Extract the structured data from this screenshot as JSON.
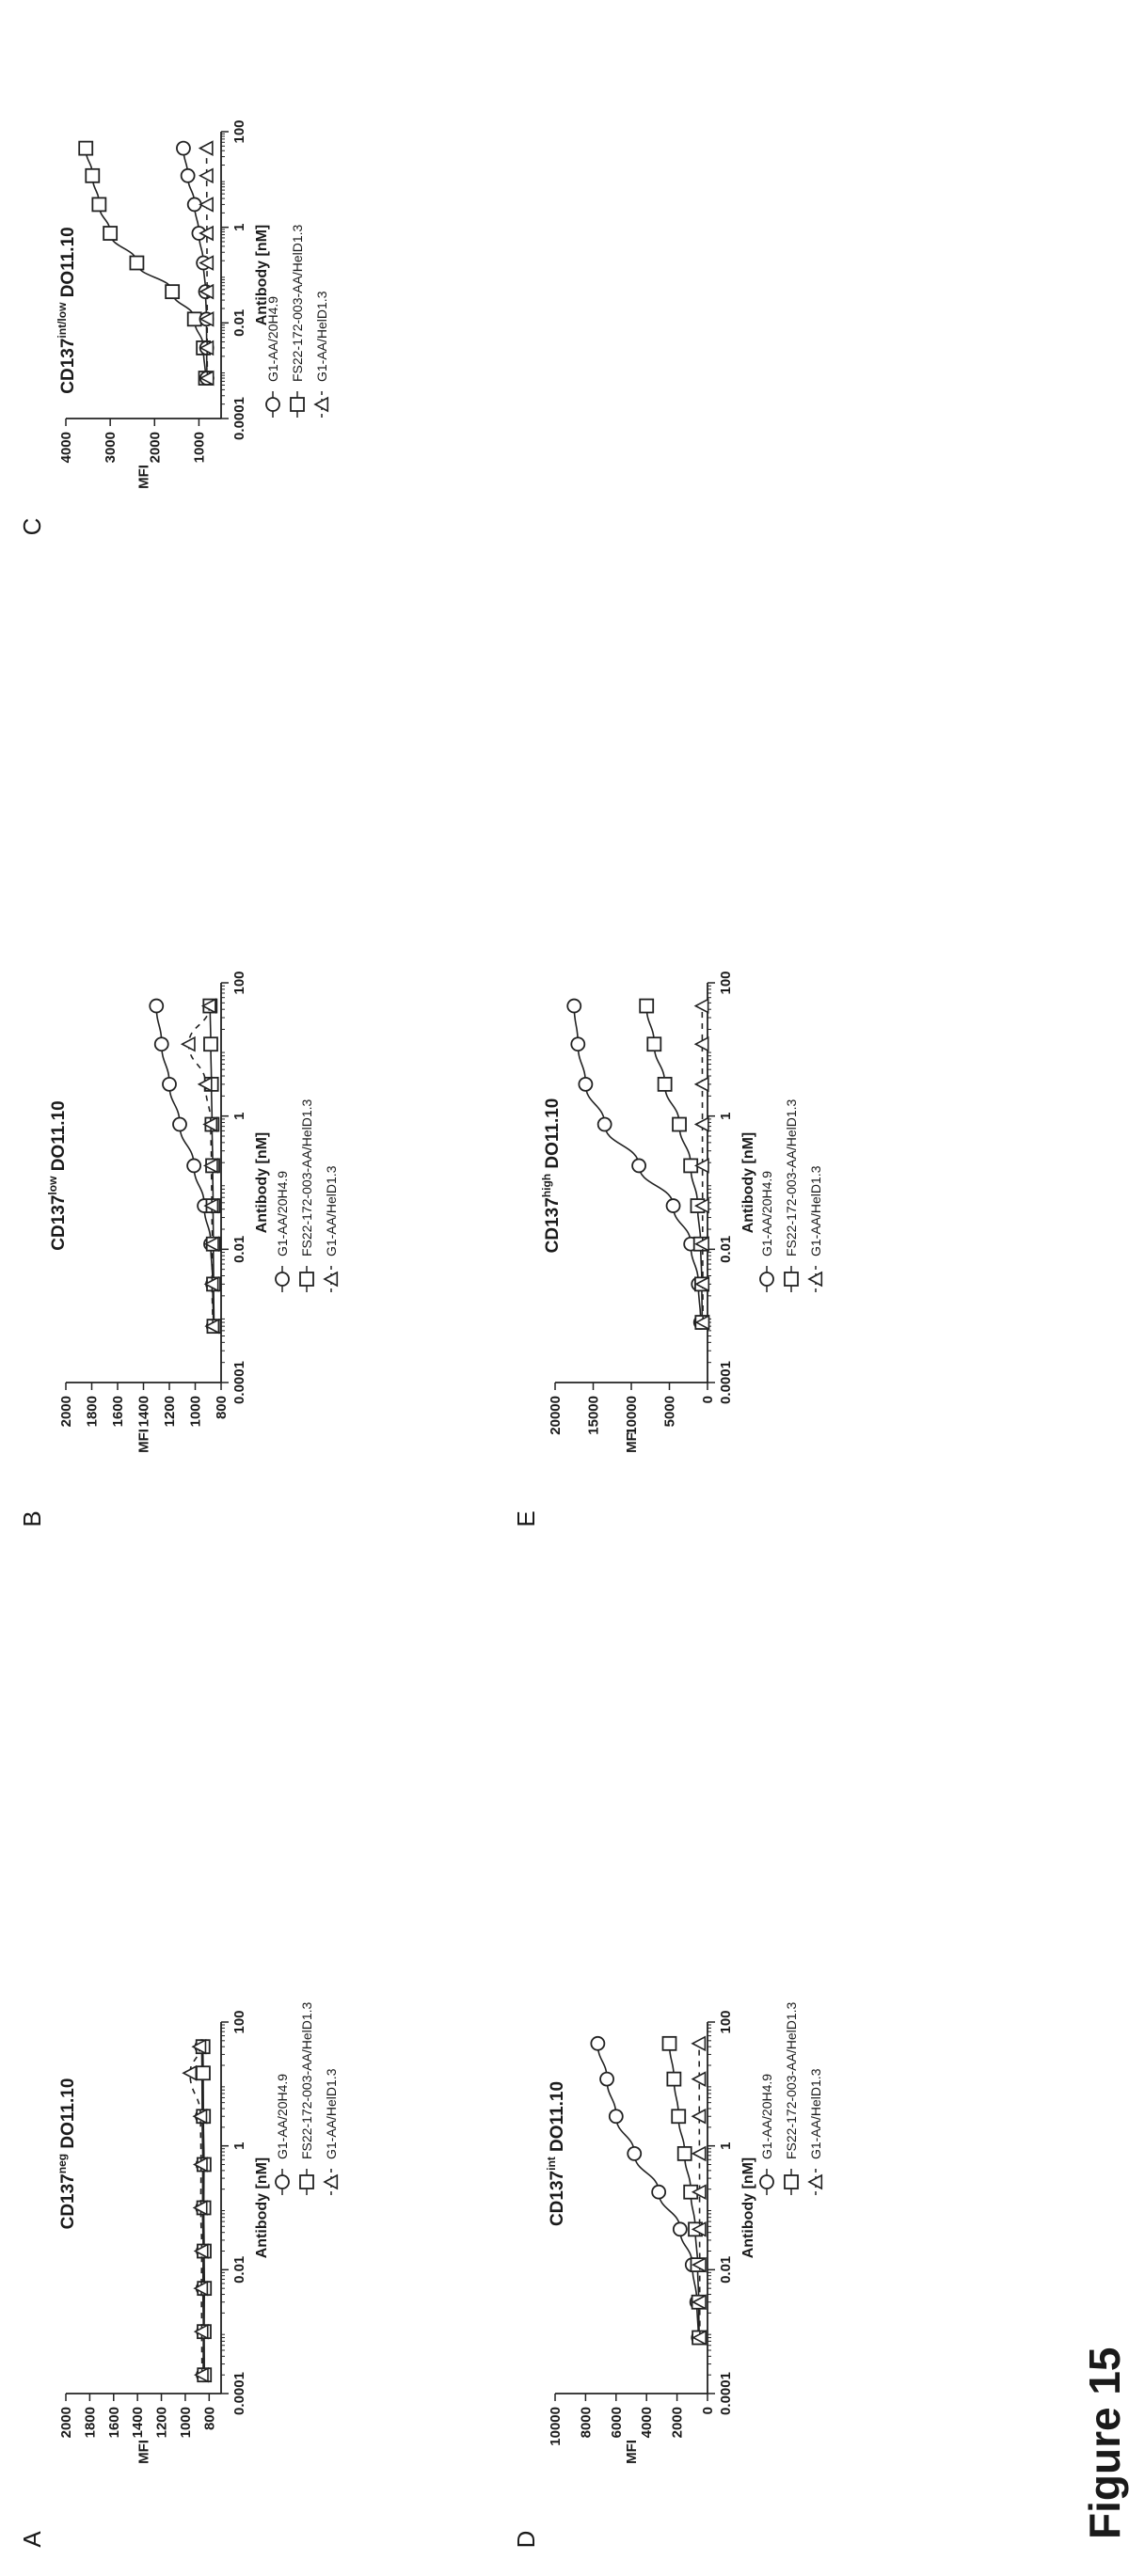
{
  "figure": {
    "caption": "Figure 15"
  },
  "legend_sets": {
    "A": [
      "G1-AA/20H4.9",
      "FS22-172-003-AA/HelD1.3",
      "G1-AA/HelD1.3"
    ],
    "B": [
      "G1-AA/20H4.9",
      "FS22-172-003-AA/HelD1.3",
      "G1-AA/HelD1.3"
    ],
    "C": [
      "G1-AA/20H4.9",
      "FS22-172-003-AA/HelD1.3",
      "G1-AA/HelD1.3"
    ],
    "D": [
      "G1-AA/20H4.9",
      "FS22-172-003-AA/HelD1.3",
      "G1-AA/HelD1.3"
    ],
    "E": [
      "G1-AA/20H4.9",
      "FS22-172-003-AA/HelD1.3",
      "G1-AA/HelD1.3"
    ]
  },
  "chart_data": [
    {
      "panel": "A",
      "type": "scatter",
      "title_parts": [
        "CD137",
        "neg",
        " DO11.10"
      ],
      "xlabel": "Antibody [nM]",
      "ylabel": "MFI",
      "x_scale": "log",
      "xlim": [
        0.0001,
        100
      ],
      "x_ticks": [
        "0.0001",
        "0.01",
        "1",
        "100"
      ],
      "ylim": [
        700,
        2000
      ],
      "y_ticks": [
        "800",
        "1000",
        "1200",
        "1400",
        "1600",
        "1800",
        "2000"
      ],
      "series": [
        {
          "name": "G1-AA/20H4.9",
          "marker": "circle",
          "line": "solid",
          "x": [
            0.0002,
            0.001,
            0.005,
            0.02,
            0.1,
            0.5,
            3,
            15,
            40
          ],
          "y": [
            850,
            848,
            852,
            850,
            855,
            853,
            858,
            860,
            862
          ]
        },
        {
          "name": "FS22-172-003-AA/HelD1.3",
          "marker": "square",
          "line": "solid",
          "x": [
            0.0002,
            0.001,
            0.005,
            0.02,
            0.1,
            0.5,
            3,
            15,
            40
          ],
          "y": [
            840,
            842,
            840,
            842,
            845,
            843,
            848,
            850,
            852
          ]
        },
        {
          "name": "G1-AA/HelD1.3",
          "marker": "triangle",
          "line": "dashed",
          "x": [
            0.0002,
            0.001,
            0.005,
            0.02,
            0.1,
            0.5,
            3,
            15,
            40
          ],
          "y": [
            860,
            862,
            865,
            862,
            870,
            868,
            872,
            960,
            880
          ]
        }
      ]
    },
    {
      "panel": "B",
      "type": "scatter",
      "title_parts": [
        "CD137",
        "low",
        " DO11.10"
      ],
      "xlabel": "Antibody [nM]",
      "ylabel": "MFI",
      "x_scale": "log",
      "xlim": [
        0.0001,
        100
      ],
      "x_ticks": [
        "0.0001",
        "0.01",
        "1",
        "100"
      ],
      "ylim": [
        800,
        2000
      ],
      "y_ticks": [
        "800",
        "1000",
        "1200",
        "1400",
        "1600",
        "1800",
        "2000"
      ],
      "series": [
        {
          "name": "G1-AA/20H4.9",
          "marker": "circle",
          "line": "solid",
          "x": [
            0.0007,
            0.003,
            0.012,
            0.045,
            0.18,
            0.75,
            3,
            12,
            45
          ],
          "y": [
            860,
            865,
            880,
            930,
            1010,
            1120,
            1200,
            1260,
            1300
          ]
        },
        {
          "name": "FS22-172-003-AA/HelD1.3",
          "marker": "square",
          "line": "solid",
          "x": [
            0.0007,
            0.003,
            0.012,
            0.045,
            0.18,
            0.75,
            3,
            12,
            45
          ],
          "y": [
            855,
            858,
            860,
            862,
            865,
            870,
            875,
            880,
            885
          ]
        },
        {
          "name": "G1-AA/HelD1.3",
          "marker": "triangle",
          "line": "dashed",
          "x": [
            0.0007,
            0.003,
            0.012,
            0.045,
            0.18,
            0.75,
            3,
            12,
            45
          ],
          "y": [
            865,
            870,
            868,
            872,
            875,
            880,
            920,
            1050,
            890
          ]
        }
      ]
    },
    {
      "panel": "C",
      "type": "scatter",
      "title_parts": [
        "CD137",
        "int/low",
        " DO11.10"
      ],
      "xlabel": "Antibody [nM]",
      "ylabel": "MFI",
      "x_scale": "log",
      "xlim": [
        0.0001,
        100
      ],
      "x_ticks": [
        "0.0001",
        "0.01",
        "1",
        "100"
      ],
      "ylim": [
        500,
        4000
      ],
      "y_ticks": [
        "1000",
        "2000",
        "3000",
        "4000"
      ],
      "series": [
        {
          "name": "FS22-172-003-AA/HelD1.3",
          "marker": "square",
          "line": "solid",
          "x": [
            0.0007,
            0.003,
            0.012,
            0.045,
            0.18,
            0.75,
            3,
            12,
            45
          ],
          "y": [
            850,
            900,
            1100,
            1600,
            2400,
            3000,
            3250,
            3400,
            3550
          ]
        },
        {
          "name": "G1-AA/20H4.9",
          "marker": "circle",
          "line": "solid",
          "x": [
            0.0007,
            0.003,
            0.012,
            0.045,
            0.18,
            0.75,
            3,
            12,
            45
          ],
          "y": [
            820,
            825,
            830,
            850,
            900,
            1000,
            1100,
            1250,
            1350
          ]
        },
        {
          "name": "G1-AA/HelD1.3",
          "marker": "triangle",
          "line": "dashed",
          "x": [
            0.0007,
            0.003,
            0.012,
            0.045,
            0.18,
            0.75,
            3,
            12,
            45
          ],
          "y": [
            810,
            815,
            812,
            815,
            818,
            820,
            822,
            825,
            828
          ]
        }
      ]
    },
    {
      "panel": "D",
      "type": "scatter",
      "title_parts": [
        "CD137",
        "int",
        " DO11.10"
      ],
      "xlabel": "Antibody [nM]",
      "ylabel": "MFI",
      "x_scale": "log",
      "xlim": [
        0.0001,
        100
      ],
      "x_ticks": [
        "0.0001",
        "0.01",
        "1",
        "100"
      ],
      "ylim": [
        0,
        10000
      ],
      "y_ticks": [
        "0",
        "2000",
        "4000",
        "6000",
        "8000",
        "10000"
      ],
      "series": [
        {
          "name": "G1-AA/20H4.9",
          "marker": "circle",
          "line": "solid",
          "x": [
            0.0008,
            0.003,
            0.012,
            0.045,
            0.18,
            0.75,
            3,
            12,
            45
          ],
          "y": [
            600,
            700,
            1000,
            1800,
            3200,
            4800,
            6000,
            6600,
            7200
          ]
        },
        {
          "name": "FS22-172-003-AA/HelD1.3",
          "marker": "square",
          "line": "solid",
          "x": [
            0.0008,
            0.003,
            0.012,
            0.045,
            0.18,
            0.75,
            3,
            12,
            45
          ],
          "y": [
            550,
            580,
            650,
            800,
            1100,
            1500,
            1900,
            2200,
            2500
          ]
        },
        {
          "name": "G1-AA/HelD1.3",
          "marker": "triangle",
          "line": "dashed",
          "x": [
            0.0008,
            0.003,
            0.012,
            0.045,
            0.18,
            0.75,
            3,
            12,
            45
          ],
          "y": [
            500,
            510,
            510,
            520,
            520,
            530,
            540,
            540,
            550
          ]
        }
      ]
    },
    {
      "panel": "E",
      "type": "scatter",
      "title_parts": [
        "CD137",
        "high",
        " DO11.10"
      ],
      "xlabel": "Antibody [nM]",
      "ylabel": "MFI",
      "x_scale": "log",
      "xlim": [
        0.0001,
        100
      ],
      "x_ticks": [
        "0.0001",
        "0.01",
        "1",
        "100"
      ],
      "ylim": [
        0,
        20000
      ],
      "y_ticks": [
        "0",
        "5000",
        "10000",
        "15000",
        "20000"
      ],
      "series": [
        {
          "name": "G1-AA/20H4.9",
          "marker": "circle",
          "line": "solid",
          "x": [
            0.0008,
            0.003,
            0.012,
            0.045,
            0.18,
            0.75,
            3,
            12,
            45
          ],
          "y": [
            900,
            1200,
            2200,
            4500,
            9000,
            13500,
            16000,
            17000,
            17500
          ]
        },
        {
          "name": "FS22-172-003-AA/HelD1.3",
          "marker": "square",
          "line": "solid",
          "x": [
            0.0008,
            0.003,
            0.012,
            0.045,
            0.18,
            0.75,
            3,
            12,
            45
          ],
          "y": [
            700,
            750,
            900,
            1300,
            2200,
            3700,
            5600,
            7000,
            8000
          ]
        },
        {
          "name": "G1-AA/HelD1.3",
          "marker": "triangle",
          "line": "dashed",
          "x": [
            0.0008,
            0.003,
            0.012,
            0.045,
            0.18,
            0.75,
            3,
            12,
            45
          ],
          "y": [
            600,
            620,
            640,
            650,
            660,
            670,
            680,
            690,
            700
          ]
        }
      ]
    }
  ]
}
